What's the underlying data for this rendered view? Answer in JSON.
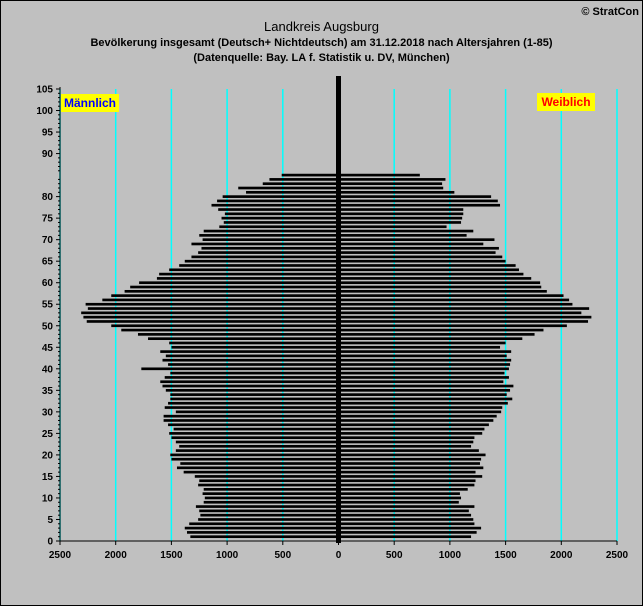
{
  "header": {
    "title": "Landkreis Augsburg",
    "subtitle1": "Bevölkerung  insgesamt (Deutsch+ Nichtdeutsch) am 31.12.2018 nach Altersjahren (1-85)",
    "subtitle2": "(Datenquelle: Bay. LA f. Statistik u. DV, München)",
    "copyright": "© StratCon"
  },
  "colors": {
    "background": "#c0c0c0",
    "bars": "#000000",
    "grid": "#00ffff",
    "label_bg": "#ffff00",
    "male_text": "#0000ff",
    "female_text": "#ff0000"
  },
  "chart_data": {
    "type": "bar",
    "orientation": "horizontal-pyramid",
    "xlim": [
      -2500,
      2500
    ],
    "ylim": [
      0,
      105
    ],
    "x_ticks": [
      -2500,
      -2000,
      -1500,
      -1000,
      -500,
      0,
      500,
      1000,
      1500,
      2000,
      2500
    ],
    "x_tick_labels": [
      "2500",
      "2000",
      "1500",
      "1000",
      "500",
      "0",
      "500",
      "1000",
      "1500",
      "2000",
      "2500"
    ],
    "y_ticks": [
      0,
      5,
      10,
      15,
      20,
      25,
      30,
      35,
      40,
      45,
      50,
      55,
      60,
      65,
      70,
      75,
      80,
      90,
      95,
      100,
      105
    ],
    "y_tick_labels": [
      "0",
      "5",
      "10",
      "15",
      "20",
      "25",
      "30",
      "35",
      "40",
      "45",
      "50",
      "55",
      "60",
      "65",
      "70",
      "75",
      "80",
      "90",
      "95",
      "100",
      "105"
    ],
    "grid": "vertical",
    "categories": [
      1,
      2,
      3,
      4,
      5,
      6,
      7,
      8,
      9,
      10,
      11,
      12,
      13,
      14,
      15,
      16,
      17,
      18,
      19,
      20,
      21,
      22,
      23,
      24,
      25,
      26,
      27,
      28,
      29,
      30,
      31,
      32,
      33,
      34,
      35,
      36,
      37,
      38,
      39,
      40,
      41,
      42,
      43,
      44,
      45,
      46,
      47,
      48,
      49,
      50,
      51,
      52,
      53,
      54,
      55,
      56,
      57,
      58,
      59,
      60,
      61,
      62,
      63,
      64,
      65,
      66,
      67,
      68,
      69,
      70,
      71,
      72,
      73,
      74,
      75,
      76,
      77,
      78,
      79,
      80,
      81,
      82,
      83,
      84,
      85
    ],
    "series": [
      {
        "name": "Männlich",
        "values": [
          1330,
          1360,
          1380,
          1340,
          1260,
          1240,
          1250,
          1280,
          1210,
          1200,
          1220,
          1210,
          1260,
          1250,
          1290,
          1390,
          1450,
          1420,
          1500,
          1510,
          1460,
          1430,
          1460,
          1500,
          1520,
          1480,
          1530,
          1570,
          1570,
          1460,
          1560,
          1530,
          1510,
          1510,
          1550,
          1580,
          1600,
          1560,
          1510,
          1770,
          1530,
          1580,
          1550,
          1600,
          1500,
          1520,
          1710,
          1800,
          1950,
          2040,
          2260,
          2290,
          2310,
          2250,
          2270,
          2120,
          2040,
          1920,
          1870,
          1790,
          1630,
          1610,
          1520,
          1430,
          1380,
          1320,
          1260,
          1230,
          1320,
          1220,
          1250,
          1210,
          1070,
          1030,
          1050,
          1020,
          1080,
          1140,
          1090,
          1040,
          830,
          900,
          680,
          620,
          510
        ]
      },
      {
        "name": "Weiblich",
        "values": [
          1190,
          1240,
          1280,
          1220,
          1210,
          1190,
          1170,
          1220,
          1080,
          1100,
          1090,
          1160,
          1220,
          1230,
          1290,
          1230,
          1300,
          1270,
          1280,
          1320,
          1260,
          1190,
          1210,
          1220,
          1290,
          1310,
          1350,
          1390,
          1420,
          1460,
          1470,
          1520,
          1560,
          1510,
          1540,
          1570,
          1480,
          1530,
          1490,
          1530,
          1540,
          1550,
          1510,
          1550,
          1450,
          1500,
          1650,
          1760,
          1840,
          2050,
          2240,
          2270,
          2180,
          2250,
          2100,
          2070,
          2020,
          1870,
          1820,
          1810,
          1730,
          1660,
          1620,
          1590,
          1500,
          1470,
          1410,
          1440,
          1300,
          1400,
          1150,
          1210,
          970,
          1100,
          1110,
          1120,
          1120,
          1450,
          1430,
          1370,
          1040,
          940,
          930,
          960,
          730
        ]
      }
    ],
    "annotations": [
      "Männlich",
      "Weiblich"
    ]
  }
}
